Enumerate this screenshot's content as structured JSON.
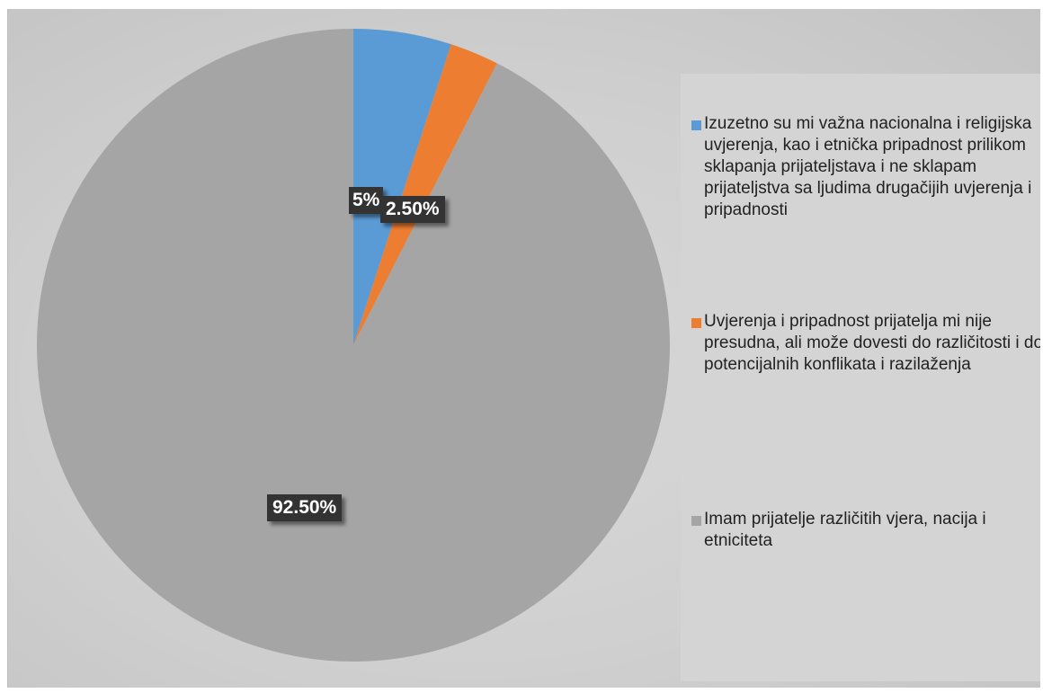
{
  "chart_data": {
    "type": "pie",
    "slices": [
      {
        "label": "Izuzetno su mi važna nacionalna i religijska uvjerenja, kao i etnička pripadnost prilikom sklapanja prijateljstava i ne sklapam prijateljstva sa ljudima drugačijih uvjerenja i pripadnosti",
        "value": 5,
        "data_label": "5%",
        "color": "#5b9bd5"
      },
      {
        "label": "Uvjerenja i pripadnost prijatelja mi nije presudna, ali može dovesti do različitosti i do potencijalnih konflikata i razilaženja",
        "value": 2.5,
        "data_label": "2.50%",
        "color": "#ed7d31"
      },
      {
        "label": "Imam prijatelje različitih vjera, nacija i etniciteta",
        "value": 92.5,
        "data_label": "92.50%",
        "color": "#a5a5a5"
      }
    ],
    "legend_position": "right",
    "start_angle": "top, clockwise"
  }
}
